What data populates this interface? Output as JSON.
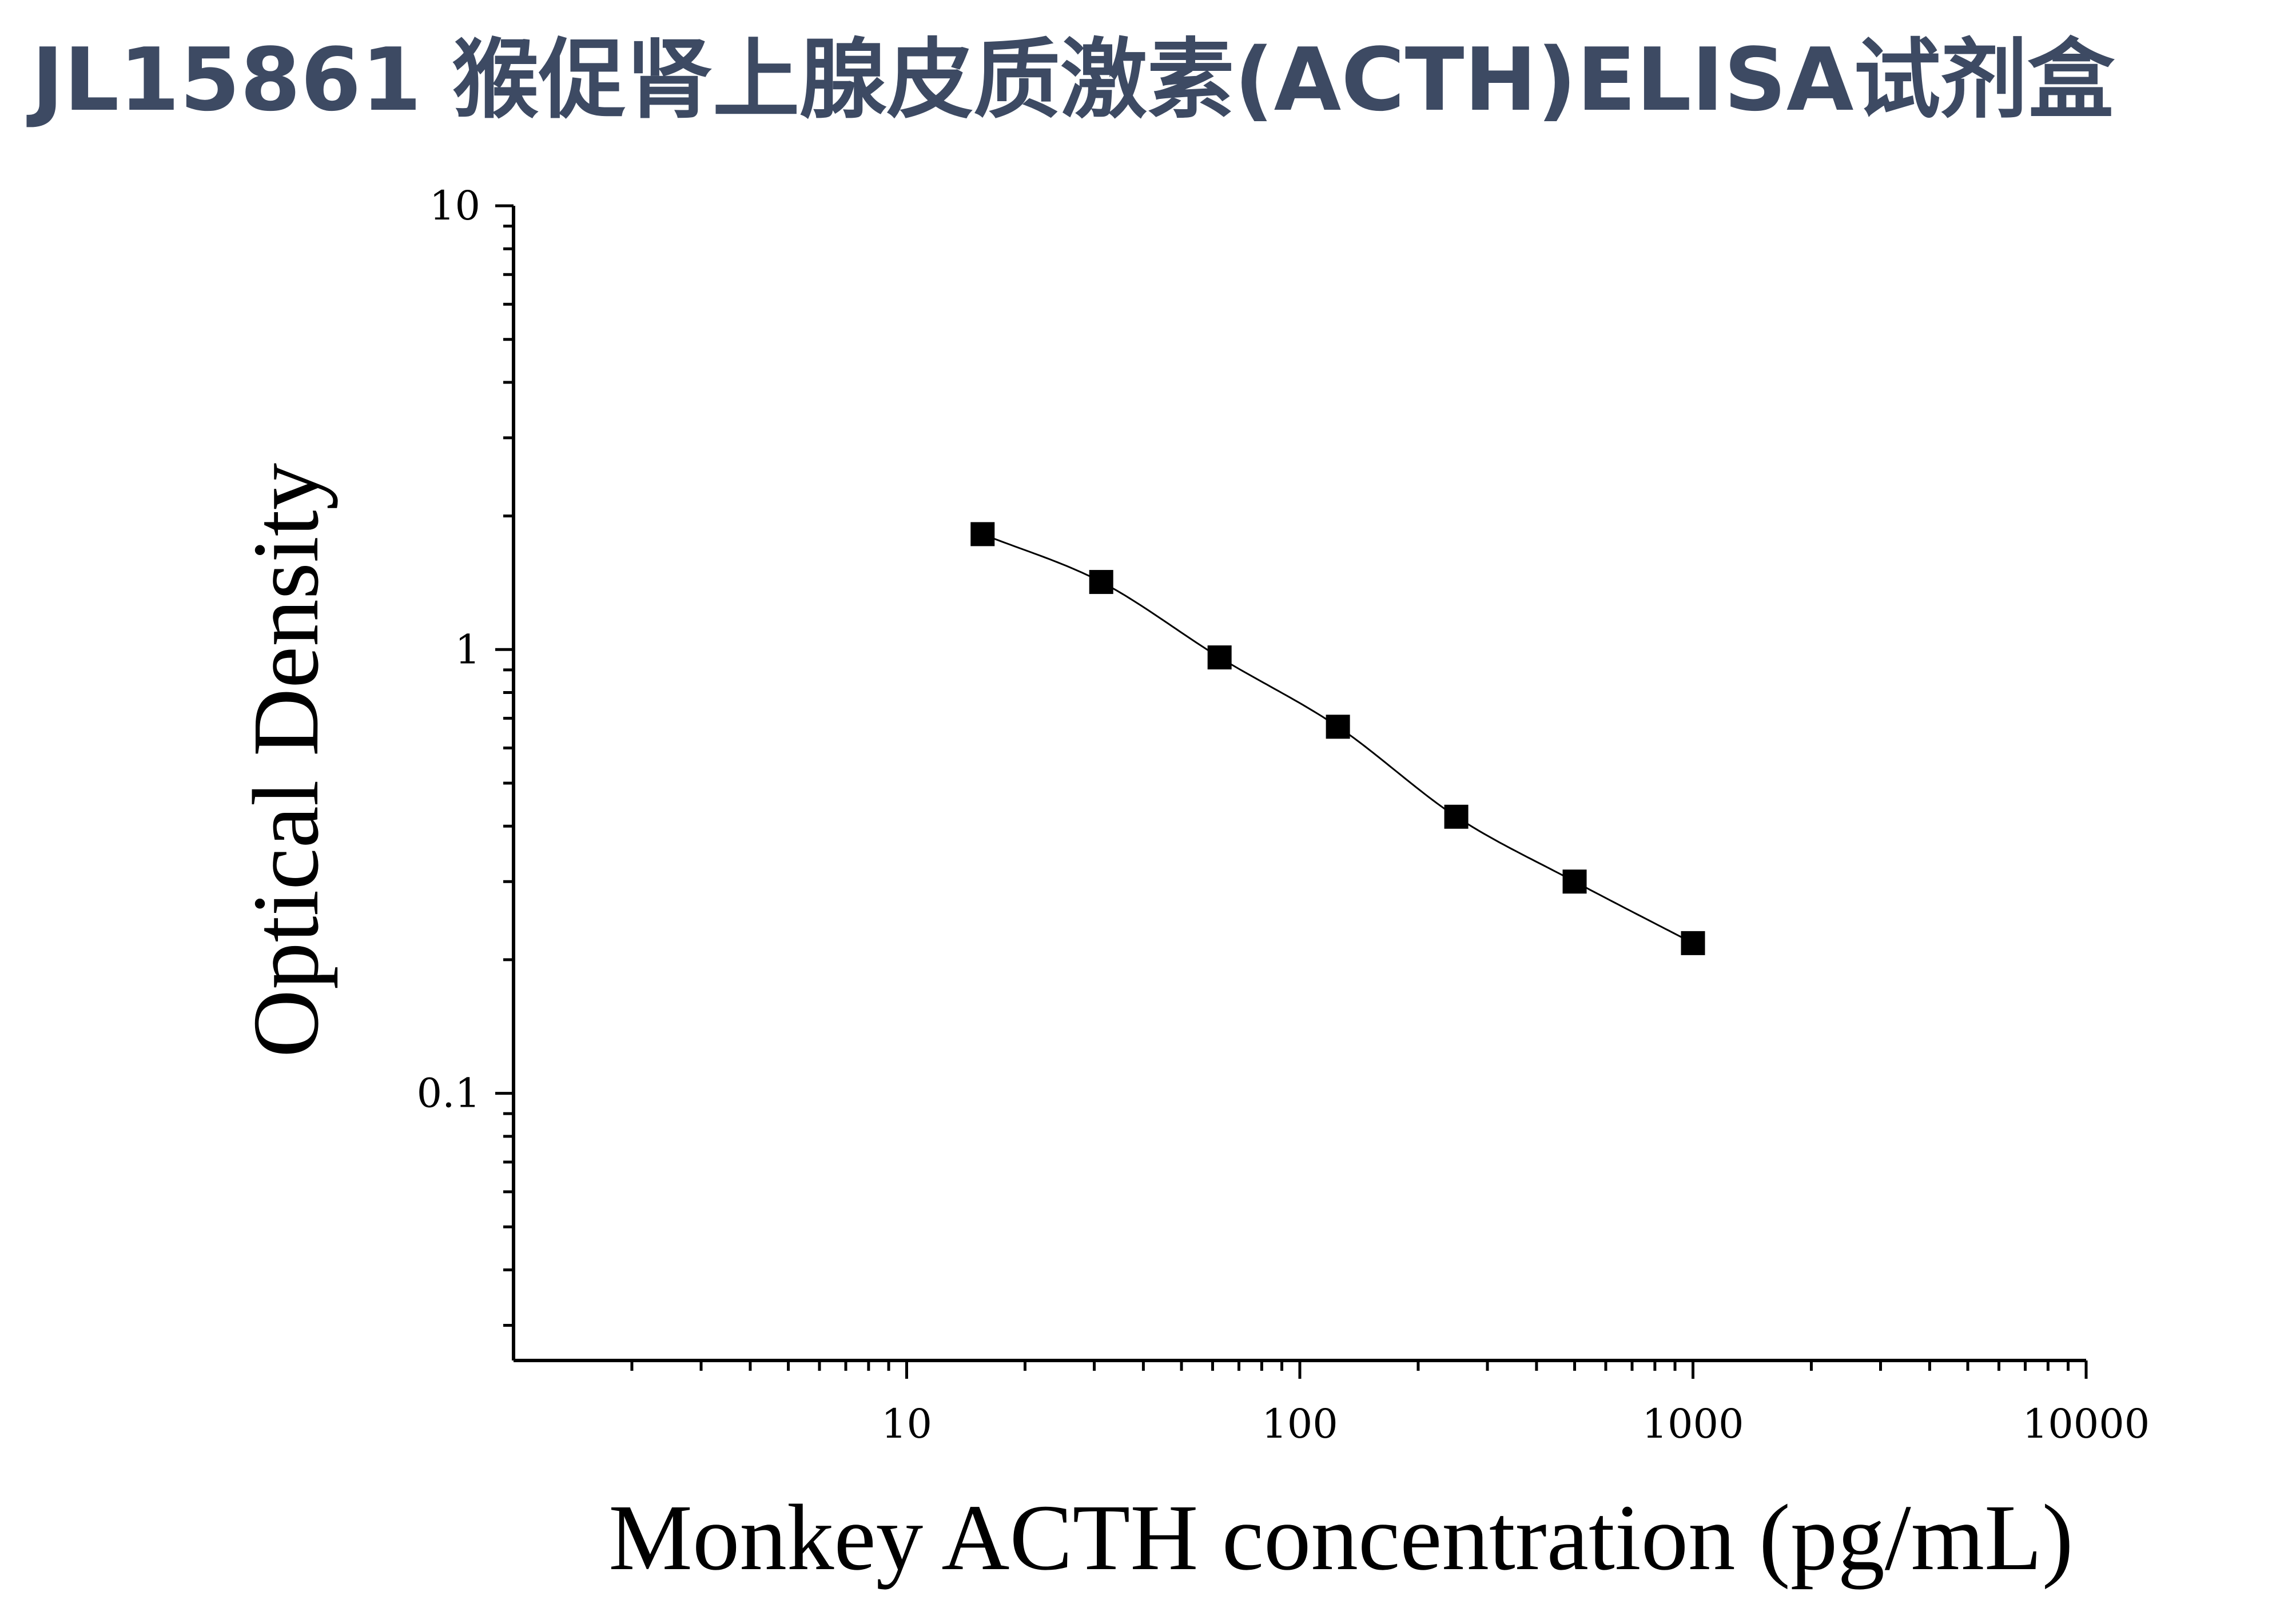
{
  "title": "JL15861 猴促肾上腺皮质激素(ACTH)ELISA试剂盒",
  "chart_data": {
    "type": "scatter",
    "xlabel": "Monkey ACTH concentration (pg/mL)",
    "ylabel": "Optical Density",
    "x_scale": "log",
    "y_scale": "log",
    "xlim": [
      1,
      10000
    ],
    "ylim": [
      0.025,
      10
    ],
    "x_ticks": [
      "10",
      "100",
      "1000",
      "10000"
    ],
    "y_ticks": [
      "0.1",
      "1",
      "10"
    ],
    "grid": false,
    "marker": "square",
    "fit_line": true,
    "series": [
      {
        "x": [
          15.6,
          31.25,
          62.5,
          125,
          250,
          500,
          1000
        ],
        "y": [
          1.82,
          1.42,
          0.96,
          0.67,
          0.42,
          0.3,
          0.218
        ]
      }
    ]
  }
}
